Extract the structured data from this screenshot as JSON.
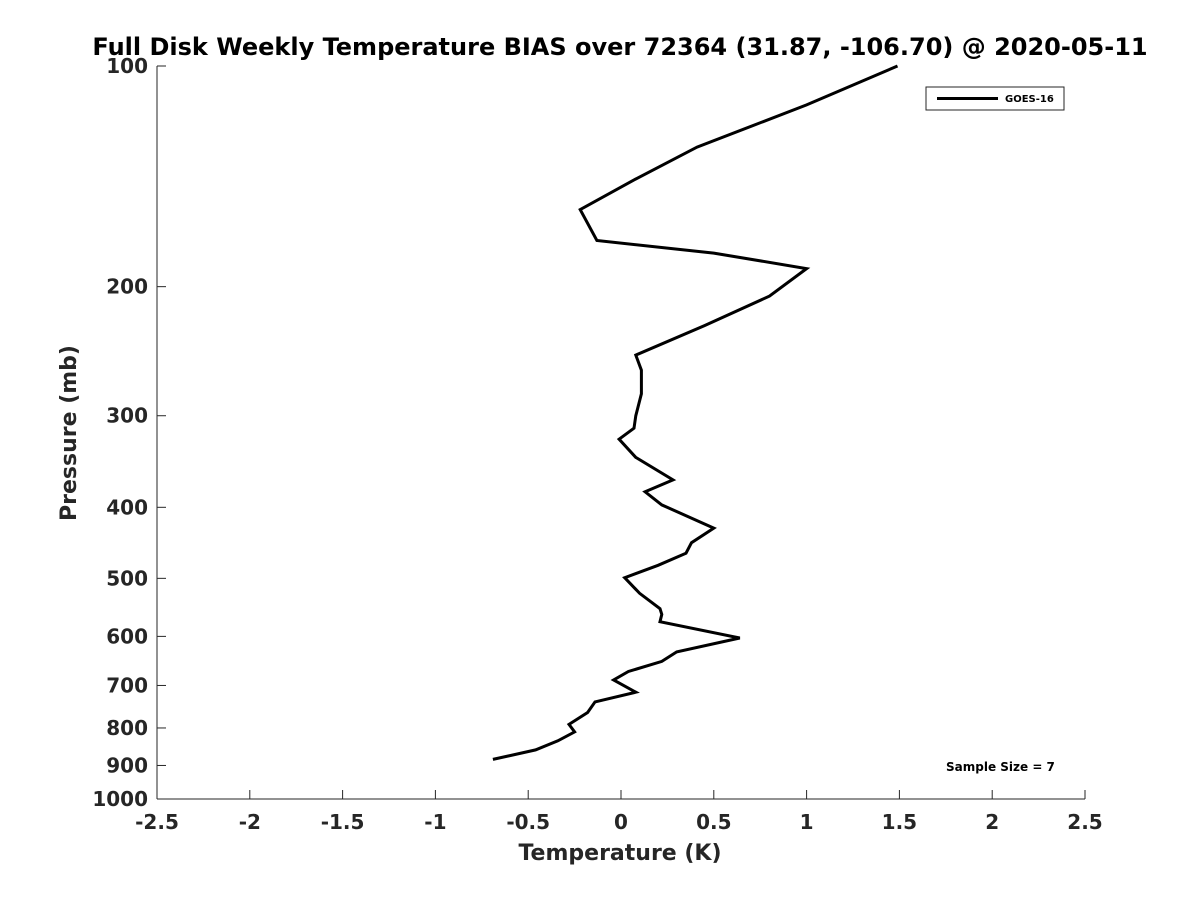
{
  "chart_data": {
    "type": "line",
    "title": "Full Disk Weekly Temperature BIAS over 72364 (31.87, -106.70) @ 2020-05-11",
    "xlabel": "Temperature (K)",
    "ylabel": "Pressure (mb)",
    "xlim": [
      -2.5,
      2.5
    ],
    "ylim": [
      100,
      1000
    ],
    "y_scale": "log",
    "y_reversed": true,
    "x_ticks": [
      -2.5,
      -2,
      -1.5,
      -1,
      -0.5,
      0,
      0.5,
      1,
      1.5,
      2,
      2.5
    ],
    "x_tick_labels": [
      "-2.5",
      "-2",
      "-1.5",
      "-1",
      "-0.5",
      "0",
      "0.5",
      "1",
      "1.5",
      "2",
      "2.5"
    ],
    "y_ticks": [
      100,
      200,
      300,
      400,
      500,
      600,
      700,
      800,
      900,
      1000
    ],
    "y_tick_labels": [
      "100",
      "200",
      "300",
      "400",
      "500",
      "600",
      "700",
      "800",
      "900",
      "1000"
    ],
    "grid": false,
    "legend_position": "top-right",
    "series": [
      {
        "name": "GOES-16",
        "color": "#000000",
        "points": [
          {
            "x": 1.49,
            "y": 100
          },
          {
            "x": 1.0,
            "y": 113
          },
          {
            "x": 0.41,
            "y": 129
          },
          {
            "x": 0.07,
            "y": 143
          },
          {
            "x": -0.22,
            "y": 157
          },
          {
            "x": -0.13,
            "y": 173
          },
          {
            "x": 0.5,
            "y": 180
          },
          {
            "x": 1.0,
            "y": 189
          },
          {
            "x": 0.8,
            "y": 206
          },
          {
            "x": 0.45,
            "y": 226
          },
          {
            "x": 0.08,
            "y": 248
          },
          {
            "x": 0.11,
            "y": 260
          },
          {
            "x": 0.11,
            "y": 280
          },
          {
            "x": 0.08,
            "y": 300
          },
          {
            "x": 0.07,
            "y": 312
          },
          {
            "x": -0.01,
            "y": 323
          },
          {
            "x": 0.08,
            "y": 342
          },
          {
            "x": 0.28,
            "y": 367
          },
          {
            "x": 0.13,
            "y": 381
          },
          {
            "x": 0.22,
            "y": 397
          },
          {
            "x": 0.5,
            "y": 427
          },
          {
            "x": 0.38,
            "y": 447
          },
          {
            "x": 0.35,
            "y": 462
          },
          {
            "x": 0.2,
            "y": 480
          },
          {
            "x": 0.02,
            "y": 499
          },
          {
            "x": 0.1,
            "y": 524
          },
          {
            "x": 0.21,
            "y": 550
          },
          {
            "x": 0.22,
            "y": 560
          },
          {
            "x": 0.21,
            "y": 573
          },
          {
            "x": 0.64,
            "y": 603
          },
          {
            "x": 0.3,
            "y": 630
          },
          {
            "x": 0.22,
            "y": 649
          },
          {
            "x": 0.04,
            "y": 670
          },
          {
            "x": -0.04,
            "y": 688
          },
          {
            "x": 0.08,
            "y": 715
          },
          {
            "x": -0.14,
            "y": 737
          },
          {
            "x": -0.18,
            "y": 762
          },
          {
            "x": -0.28,
            "y": 791
          },
          {
            "x": -0.25,
            "y": 810
          },
          {
            "x": -0.34,
            "y": 833
          },
          {
            "x": -0.46,
            "y": 857
          },
          {
            "x": -0.69,
            "y": 883
          }
        ]
      }
    ],
    "annotations": [
      "Sample Size = 7"
    ]
  }
}
